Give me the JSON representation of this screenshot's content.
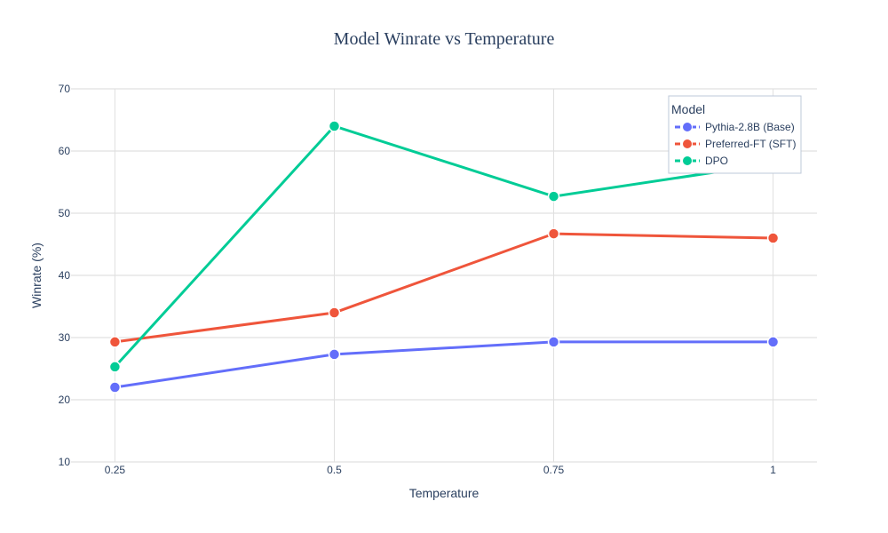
{
  "chart_data": {
    "type": "line",
    "title": "Model Winrate vs Temperature",
    "xlabel": "Temperature",
    "ylabel": "Winrate (%)",
    "x": [
      0.25,
      0.5,
      0.75,
      1
    ],
    "x_tick_labels": [
      "0.25",
      "0.5",
      "0.75",
      "1"
    ],
    "ylim": [
      10,
      70
    ],
    "y_ticks": [
      10,
      20,
      30,
      40,
      50,
      60,
      70
    ],
    "grid": true,
    "legend": {
      "title": "Model",
      "placement": "top-right"
    },
    "series": [
      {
        "name": "Pythia-2.8B (Base)",
        "color": "#636efa",
        "values": [
          22.0,
          27.3,
          29.3,
          29.3
        ]
      },
      {
        "name": "Preferred-FT (SFT)",
        "color": "#ef553b",
        "values": [
          29.3,
          34.0,
          46.7,
          46.0
        ]
      },
      {
        "name": "DPO",
        "color": "#00cc96",
        "values": [
          25.3,
          64.0,
          52.7,
          58.0
        ]
      }
    ]
  }
}
